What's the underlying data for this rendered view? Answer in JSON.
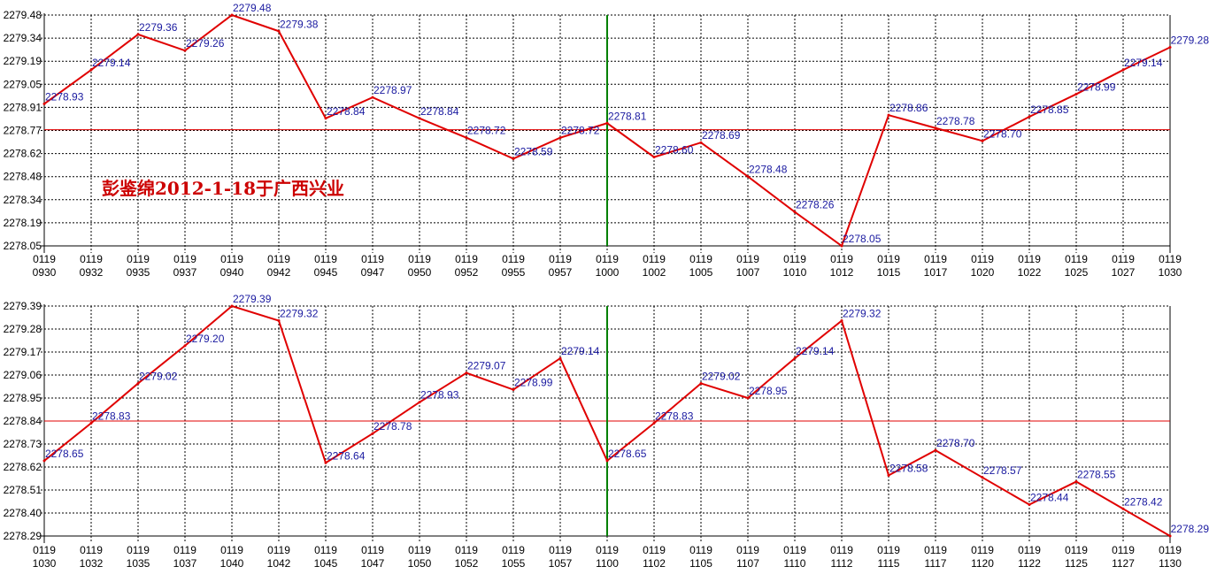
{
  "watermark": "彭鉴绵2012-1-18于广西兴业",
  "colors": {
    "line": "#e00000",
    "label": "#1a1aa0",
    "ref_line": "#e00000",
    "divider": "#008000",
    "grid": "#000000",
    "axis_text": "#000000",
    "watermark": "#cc0000"
  },
  "chart_data": [
    {
      "type": "line",
      "title": "",
      "grid": true,
      "y_ticks": [
        "2279.48",
        "2279.34",
        "2279.19",
        "2279.05",
        "2278.91",
        "2278.77",
        "2278.62",
        "2278.48",
        "2278.34",
        "2278.19",
        "2278.05"
      ],
      "ylim": [
        2278.05,
        2279.48
      ],
      "reference_value": 2278.77,
      "x_ticks_top": [
        "0119",
        "0119",
        "0119",
        "0119",
        "0119",
        "0119",
        "0119",
        "0119",
        "0119",
        "0119",
        "0119",
        "0119",
        "0119",
        "0119",
        "0119",
        "0119",
        "0119",
        "0119",
        "0119",
        "0119",
        "0119",
        "0119",
        "0119",
        "0119",
        "0119"
      ],
      "x_ticks_bottom": [
        "0930",
        "0932",
        "0935",
        "0937",
        "0940",
        "0942",
        "0945",
        "0947",
        "0950",
        "0952",
        "0955",
        "0957",
        "1000",
        "1002",
        "1005",
        "1007",
        "1010",
        "1012",
        "1015",
        "1017",
        "1020",
        "1022",
        "1025",
        "1027",
        "1030"
      ],
      "divider_after_tick": "1000",
      "series": [
        {
          "values": [
            2278.93,
            2279.14,
            2279.36,
            2279.26,
            2279.48,
            2279.38,
            2278.84,
            2278.97,
            2278.84,
            2278.72,
            2278.59,
            2278.72,
            2278.81,
            2278.6,
            2278.69,
            2278.48,
            2278.26,
            2278.05,
            2278.86,
            2278.78,
            2278.7,
            2278.85,
            2278.99,
            2279.14,
            2279.28
          ],
          "labels": [
            "2278.93",
            "2279.14",
            "2279.36",
            "2279.26",
            "2279.48",
            "2279.38",
            "2278.84",
            "2278.97",
            "2278.84",
            "2278.72",
            "2278.59",
            "2278.72",
            "2278.81",
            "2278.60",
            "2278.69",
            "2278.48",
            "2278.26",
            "2278.05",
            "2278.86",
            "2278.78",
            "2278.70",
            "2278.85",
            "2278.99",
            "2279.14",
            "2279.28"
          ]
        }
      ]
    },
    {
      "type": "line",
      "title": "",
      "grid": true,
      "y_ticks": [
        "2279.39",
        "2279.28",
        "2279.17",
        "2279.06",
        "2278.95",
        "2278.84",
        "2278.73",
        "2278.62",
        "2278.51",
        "2278.40",
        "2278.29"
      ],
      "ylim": [
        2278.29,
        2279.39
      ],
      "reference_value": 2278.84,
      "x_ticks_top": [
        "0119",
        "0119",
        "0119",
        "0119",
        "0119",
        "0119",
        "0119",
        "0119",
        "0119",
        "0119",
        "0119",
        "0119",
        "0119",
        "0119",
        "0119",
        "0119",
        "0119",
        "0119",
        "0119",
        "0119",
        "0119",
        "0119",
        "0119",
        "0119",
        "0119"
      ],
      "x_ticks_bottom": [
        "1030",
        "1032",
        "1035",
        "1037",
        "1040",
        "1042",
        "1045",
        "1047",
        "1050",
        "1052",
        "1055",
        "1057",
        "1100",
        "1102",
        "1105",
        "1107",
        "1110",
        "1112",
        "1115",
        "1117",
        "1120",
        "1122",
        "1125",
        "1127",
        "1130"
      ],
      "divider_after_tick": "1100",
      "series": [
        {
          "values": [
            2278.65,
            2278.83,
            2279.02,
            2279.2,
            2279.39,
            2279.32,
            2278.64,
            2278.78,
            2278.93,
            2279.07,
            2278.99,
            2279.14,
            2278.65,
            2278.83,
            2279.02,
            2278.95,
            2279.14,
            2279.32,
            2278.58,
            2278.7,
            2278.57,
            2278.44,
            2278.55,
            2278.42,
            2278.29
          ],
          "labels": [
            "2278.65",
            "2278.83",
            "2279.02",
            "2279.20",
            "2279.39",
            "2279.32",
            "2278.64",
            "2278.78",
            "2278.93",
            "2279.07",
            "2278.99",
            "2279.14",
            "2278.65",
            "2278.83",
            "2279.02",
            "2278.95",
            "2279.14",
            "2279.32",
            "2278.58",
            "2278.70",
            "2278.57",
            "2278.44",
            "2278.55",
            "2278.42",
            "2278.29"
          ]
        }
      ]
    }
  ]
}
